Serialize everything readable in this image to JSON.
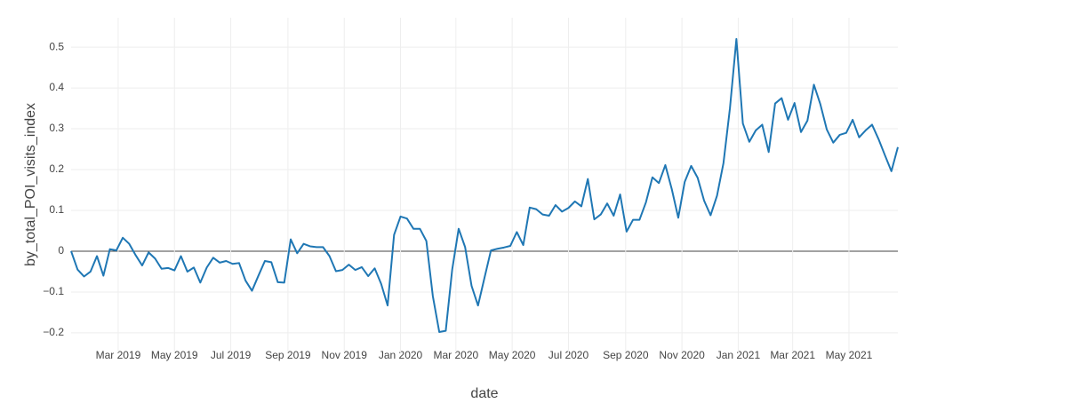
{
  "chart_data": {
    "type": "line",
    "xlabel": "date",
    "ylabel": "by_total_POI_visits_index",
    "x": [
      "2019-01-09",
      "2019-01-16",
      "2019-01-23",
      "2019-01-30",
      "2019-02-06",
      "2019-02-13",
      "2019-02-20",
      "2019-02-27",
      "2019-03-06",
      "2019-03-13",
      "2019-03-20",
      "2019-03-27",
      "2019-04-03",
      "2019-04-10",
      "2019-04-17",
      "2019-04-24",
      "2019-05-01",
      "2019-05-08",
      "2019-05-15",
      "2019-05-22",
      "2019-05-29",
      "2019-06-05",
      "2019-06-12",
      "2019-06-19",
      "2019-06-26",
      "2019-07-03",
      "2019-07-10",
      "2019-07-17",
      "2019-07-24",
      "2019-07-31",
      "2019-08-07",
      "2019-08-14",
      "2019-08-21",
      "2019-08-28",
      "2019-09-04",
      "2019-09-11",
      "2019-09-18",
      "2019-09-25",
      "2019-10-02",
      "2019-10-09",
      "2019-10-16",
      "2019-10-23",
      "2019-10-30",
      "2019-11-06",
      "2019-11-13",
      "2019-11-20",
      "2019-11-27",
      "2019-12-04",
      "2019-12-11",
      "2019-12-18",
      "2019-12-25",
      "2020-01-01",
      "2020-01-08",
      "2020-01-15",
      "2020-01-22",
      "2020-01-29",
      "2020-02-05",
      "2020-02-12",
      "2020-02-19",
      "2020-02-26",
      "2020-03-04",
      "2020-03-11",
      "2020-03-18",
      "2020-03-25",
      "2020-04-01",
      "2020-04-08",
      "2020-04-15",
      "2020-04-22",
      "2020-04-29",
      "2020-05-06",
      "2020-05-13",
      "2020-05-20",
      "2020-05-27",
      "2020-06-03",
      "2020-06-10",
      "2020-06-17",
      "2020-06-24",
      "2020-07-01",
      "2020-07-08",
      "2020-07-15",
      "2020-07-22",
      "2020-07-29",
      "2020-08-05",
      "2020-08-12",
      "2020-08-19",
      "2020-08-26",
      "2020-09-02",
      "2020-09-09",
      "2020-09-16",
      "2020-09-23",
      "2020-09-30",
      "2020-10-07",
      "2020-10-14",
      "2020-10-21",
      "2020-10-28",
      "2020-11-04",
      "2020-11-11",
      "2020-11-18",
      "2020-11-25",
      "2020-12-02",
      "2020-12-09",
      "2020-12-16",
      "2020-12-23",
      "2020-12-30",
      "2021-01-06",
      "2021-01-13",
      "2021-01-20",
      "2021-01-27",
      "2021-02-03",
      "2021-02-10",
      "2021-02-17",
      "2021-02-24",
      "2021-03-03",
      "2021-03-10",
      "2021-03-17",
      "2021-03-24",
      "2021-03-31",
      "2021-04-07",
      "2021-04-14",
      "2021-04-21",
      "2021-04-28",
      "2021-05-05",
      "2021-05-12",
      "2021-05-19",
      "2021-05-26",
      "2021-06-02",
      "2021-06-09",
      "2021-06-16",
      "2021-06-23"
    ],
    "series": [
      {
        "color": "#1f77b4",
        "values": [
          0,
          -0.045,
          -0.062,
          -0.05,
          -0.012,
          -0.06,
          0.005,
          0.002,
          0.033,
          0.018,
          -0.01,
          -0.035,
          -0.003,
          -0.018,
          -0.043,
          -0.041,
          -0.047,
          -0.012,
          -0.05,
          -0.04,
          -0.077,
          -0.04,
          -0.016,
          -0.028,
          -0.024,
          -0.031,
          -0.029,
          -0.072,
          -0.097,
          -0.06,
          -0.024,
          -0.027,
          -0.076,
          -0.077,
          0.029,
          -0.005,
          0.018,
          0.012,
          0.01,
          0.01,
          -0.012,
          -0.049,
          -0.046,
          -0.033,
          -0.046,
          -0.039,
          -0.061,
          -0.042,
          -0.08,
          -0.133,
          0.04,
          0.085,
          0.08,
          0.055,
          0.055,
          0.025,
          -0.11,
          -0.198,
          -0.195,
          -0.045,
          0.055,
          0.01,
          -0.085,
          -0.133,
          -0.065,
          0.002,
          0.006,
          0.009,
          0.013,
          0.047,
          0.015,
          0.107,
          0.103,
          0.09,
          0.087,
          0.113,
          0.097,
          0.106,
          0.122,
          0.11,
          0.177,
          0.078,
          0.09,
          0.117,
          0.087,
          0.139,
          0.048,
          0.077,
          0.077,
          0.12,
          0.181,
          0.167,
          0.211,
          0.152,
          0.082,
          0.17,
          0.209,
          0.18,
          0.124,
          0.088,
          0.136,
          0.216,
          0.35,
          0.52,
          0.313,
          0.268,
          0.296,
          0.31,
          0.243,
          0.362,
          0.375,
          0.322,
          0.363,
          0.292,
          0.32,
          0.408,
          0.36,
          0.298,
          0.266,
          0.285,
          0.29,
          0.322,
          0.279,
          0.296,
          0.31,
          0.275,
          0.235,
          0.196,
          0.255
        ]
      }
    ],
    "xlim": [
      "2019-01-09",
      "2021-06-23"
    ],
    "xticks": [
      {
        "value": "2019-03-01",
        "label": "Mar 2019"
      },
      {
        "value": "2019-05-01",
        "label": "May 2019"
      },
      {
        "value": "2019-07-01",
        "label": "Jul 2019"
      },
      {
        "value": "2019-09-01",
        "label": "Sep 2019"
      },
      {
        "value": "2019-11-01",
        "label": "Nov 2019"
      },
      {
        "value": "2020-01-01",
        "label": "Jan 2020"
      },
      {
        "value": "2020-03-01",
        "label": "Mar 2020"
      },
      {
        "value": "2020-05-01",
        "label": "May 2020"
      },
      {
        "value": "2020-07-01",
        "label": "Jul 2020"
      },
      {
        "value": "2020-09-01",
        "label": "Sep 2020"
      },
      {
        "value": "2020-11-01",
        "label": "Nov 2020"
      },
      {
        "value": "2021-01-01",
        "label": "Jan 2021"
      },
      {
        "value": "2021-03-01",
        "label": "Mar 2021"
      },
      {
        "value": "2021-05-01",
        "label": "May 2021"
      }
    ],
    "ylim": [
      -0.248,
      0.572
    ],
    "yticks": [
      {
        "value": -0.2,
        "label": "−0.2"
      },
      {
        "value": -0.1,
        "label": "−0.1"
      },
      0,
      0.1,
      0.2,
      0.3,
      0.4,
      0.5
    ],
    "grid": true
  }
}
